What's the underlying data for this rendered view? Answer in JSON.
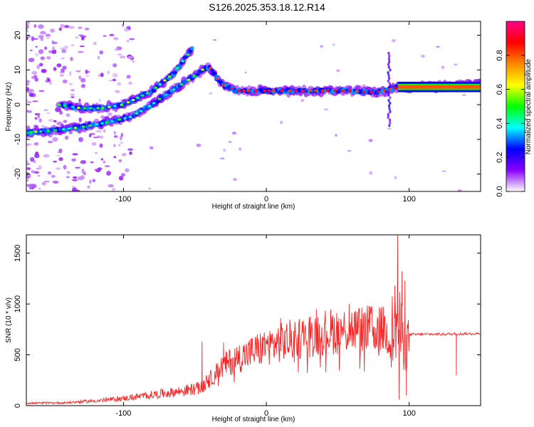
{
  "title": "S126.2025.353.18.12.R14",
  "chart_data": [
    {
      "type": "heatmap",
      "xlabel": "Height of straight line (km)",
      "ylabel": "Frequency (Hz)",
      "xlim": [
        -168,
        150
      ],
      "ylim": [
        -25,
        24
      ],
      "xticks": [
        -100,
        0,
        100
      ],
      "yticks": [
        -20,
        -10,
        0,
        10,
        20
      ],
      "colorbar": {
        "label": "Normalized spectral amplitude",
        "range": [
          0.0,
          1.0
        ],
        "ticks": [
          0.0,
          0.2,
          0.4,
          0.6,
          0.8
        ],
        "tick_labels": [
          "0.0",
          "0.2",
          "0.4",
          "0.6",
          "0.8"
        ],
        "colors": [
          "#ffffff",
          "#8800ff",
          "#0000ff",
          "#00ffff",
          "#00ff00",
          "#ffff00",
          "#ff8800",
          "#ff0000",
          "#ff0088"
        ]
      },
      "ridges": [
        {
          "points": [
            [
              -168,
              -8
            ],
            [
              -150,
              -7.5
            ],
            [
              -130,
              -6.5
            ],
            [
              -110,
              -5
            ],
            [
              -95,
              -3.5
            ],
            [
              -82,
              -0.5
            ],
            [
              -70,
              3
            ],
            [
              -55,
              7
            ],
            [
              -45,
              10
            ],
            [
              -40,
              11
            ],
            [
              -35,
              8
            ],
            [
              -30,
              5.5
            ],
            [
              -20,
              4
            ],
            [
              -10,
              4
            ],
            [
              0,
              4
            ],
            [
              20,
              4
            ],
            [
              40,
              4
            ],
            [
              60,
              4
            ],
            [
              75,
              3.5
            ],
            [
              82,
              4
            ],
            [
              92,
              5
            ],
            [
              110,
              5
            ],
            [
              130,
              5.5
            ],
            [
              150,
              6
            ]
          ],
          "amplitude": 0.7
        },
        {
          "points": [
            [
              -145,
              0
            ],
            [
              -130,
              -1
            ],
            [
              -115,
              -1
            ],
            [
              -100,
              0
            ],
            [
              -90,
              2
            ],
            [
              -80,
              4
            ],
            [
              -65,
              9
            ],
            [
              -52,
              16
            ]
          ],
          "amplitude": 0.4
        }
      ]
    },
    {
      "type": "line",
      "xlabel": "Height of straight line (km)",
      "ylabel": "SNR (10 * v/v)",
      "xlim": [
        -168,
        150
      ],
      "ylim": [
        0,
        1680
      ],
      "xticks": [
        -100,
        0,
        100
      ],
      "yticks": [
        0,
        500,
        1000,
        1500
      ],
      "color": "#ff2222",
      "envelope": [
        [
          -168,
          20
        ],
        [
          -140,
          25
        ],
        [
          -120,
          40
        ],
        [
          -100,
          60
        ],
        [
          -80,
          90
        ],
        [
          -60,
          120
        ],
        [
          -45,
          150
        ],
        [
          -38,
          300
        ],
        [
          -30,
          420
        ],
        [
          -20,
          500
        ],
        [
          -10,
          560
        ],
        [
          0,
          620
        ],
        [
          20,
          700
        ],
        [
          40,
          770
        ],
        [
          60,
          800
        ],
        [
          80,
          800
        ],
        [
          85,
          750
        ],
        [
          92,
          900
        ],
        [
          96,
          700
        ],
        [
          100,
          700
        ],
        [
          130,
          705
        ],
        [
          150,
          710
        ]
      ],
      "spikes": [
        [
          -45,
          630
        ],
        [
          -30,
          620
        ],
        [
          10,
          860
        ],
        [
          35,
          950
        ],
        [
          45,
          920
        ],
        [
          58,
          1000
        ],
        [
          72,
          980
        ],
        [
          82,
          970
        ],
        [
          90,
          1180
        ],
        [
          92,
          1680
        ],
        [
          95,
          1320
        ],
        [
          97,
          1230
        ],
        [
          93,
          60
        ],
        [
          98,
          100
        ],
        [
          133,
          300
        ]
      ]
    }
  ]
}
